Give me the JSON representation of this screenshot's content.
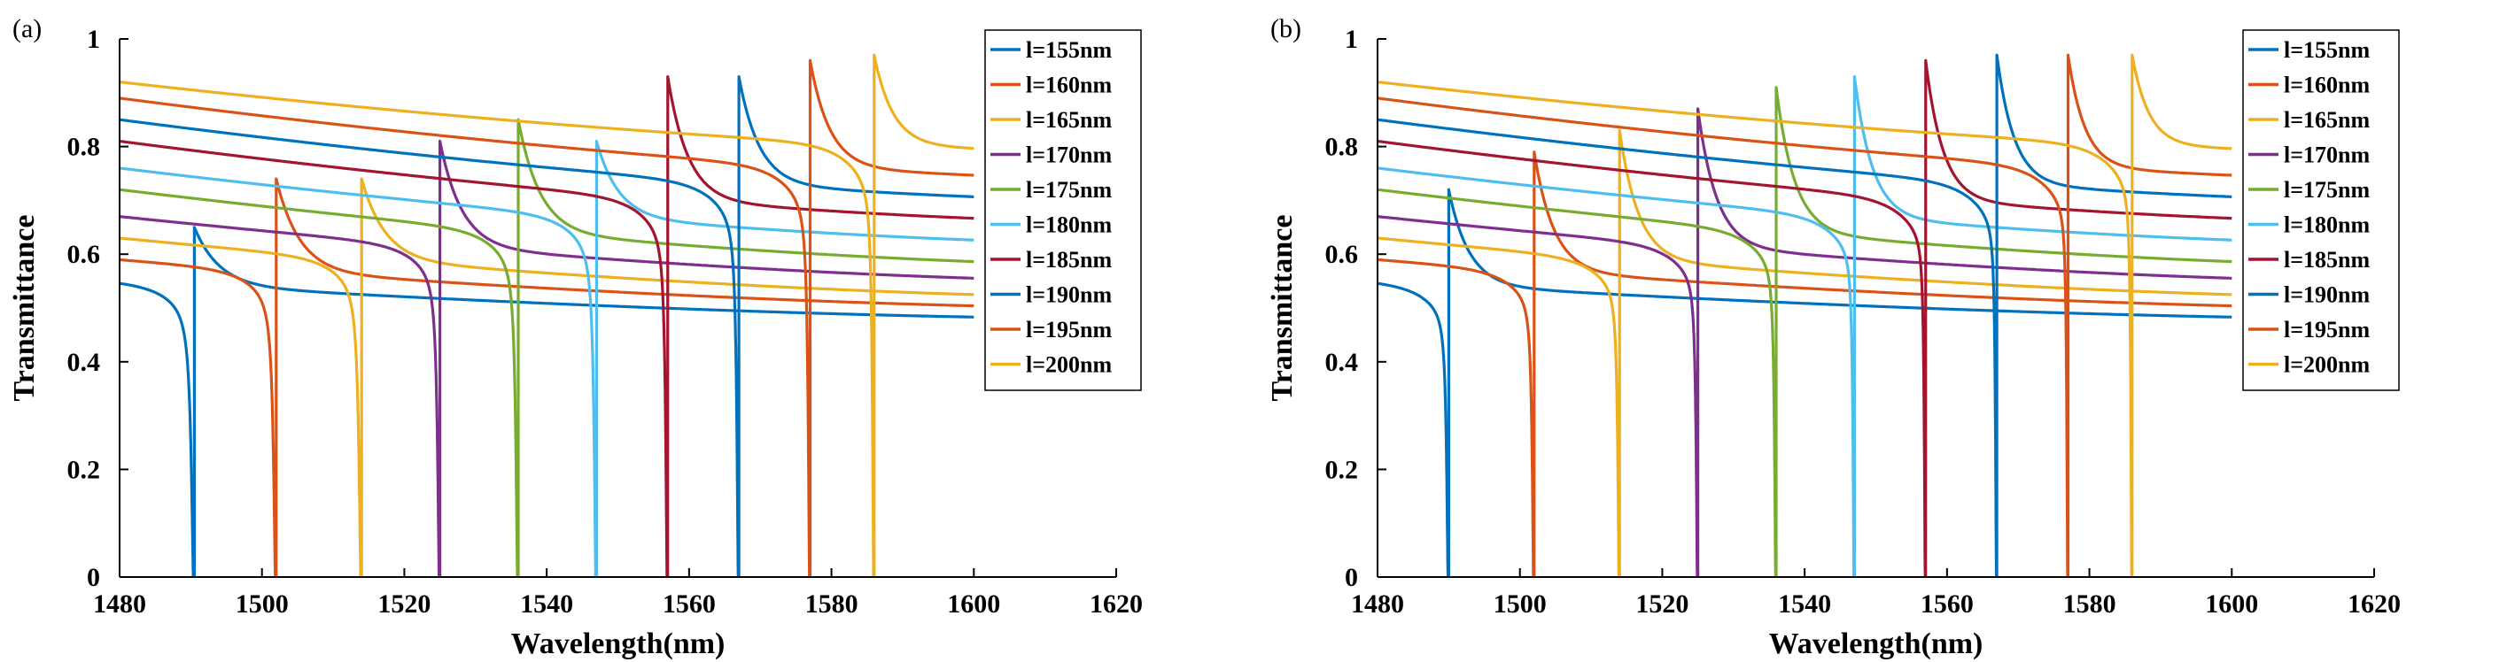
{
  "chart_data": [
    {
      "type": "line",
      "panel_label": "(a)",
      "xlabel": "Wavelength(nm)",
      "ylabel": "Transmittance",
      "xlim": [
        1480,
        1620
      ],
      "ylim": [
        0,
        1
      ],
      "xticks": [
        "1480",
        "1500",
        "1520",
        "1540",
        "1560",
        "1580",
        "1600",
        "1620"
      ],
      "yticks": [
        "0",
        "0.2",
        "0.4",
        "0.6",
        "0.8",
        "1"
      ],
      "legend_position": "top-right",
      "series": [
        {
          "name": "l=155nm",
          "color": "#0072BD",
          "base_start": 0.55,
          "base_end": 0.48,
          "resonance": 1490.5,
          "peak": 0.65,
          "dip": 0.01,
          "width": 0.45
        },
        {
          "name": "l=160nm",
          "color": "#D95319",
          "base_start": 0.59,
          "base_end": 0.5,
          "resonance": 1502.0,
          "peak": 0.74,
          "dip": 0.01,
          "width": 0.4
        },
        {
          "name": "l=165nm",
          "color": "#EDB120",
          "base_start": 0.63,
          "base_end": 0.52,
          "resonance": 1514.0,
          "peak": 0.74,
          "dip": 0.01,
          "width": 0.4
        },
        {
          "name": "l=170nm",
          "color": "#7E2F8E",
          "base_start": 0.67,
          "base_end": 0.55,
          "resonance": 1525.0,
          "peak": 0.81,
          "dip": 0.01,
          "width": 0.35
        },
        {
          "name": "l=175nm",
          "color": "#77AC30",
          "base_start": 0.72,
          "base_end": 0.58,
          "resonance": 1536.0,
          "peak": 0.85,
          "dip": 0.01,
          "width": 0.35
        },
        {
          "name": "l=180nm",
          "color": "#4DBEEE",
          "base_start": 0.76,
          "base_end": 0.62,
          "resonance": 1547.0,
          "peak": 0.81,
          "dip": 0.01,
          "width": 0.35
        },
        {
          "name": "l=185nm",
          "color": "#A2142F",
          "base_start": 0.81,
          "base_end": 0.66,
          "resonance": 1557.0,
          "peak": 0.93,
          "dip": 0.01,
          "width": 0.3
        },
        {
          "name": "l=190nm",
          "color": "#0072BD",
          "base_start": 0.85,
          "base_end": 0.7,
          "resonance": 1567.0,
          "peak": 0.93,
          "dip": 0.01,
          "width": 0.3
        },
        {
          "name": "l=195nm",
          "color": "#D95319",
          "base_start": 0.89,
          "base_end": 0.74,
          "resonance": 1577.0,
          "peak": 0.96,
          "dip": 0.01,
          "width": 0.28
        },
        {
          "name": "l=200nm",
          "color": "#EDB120",
          "base_start": 0.92,
          "base_end": 0.79,
          "resonance": 1586.0,
          "peak": 0.97,
          "dip": 0.01,
          "width": 0.25
        }
      ]
    },
    {
      "type": "line",
      "panel_label": "(b)",
      "xlabel": "Wavelength(nm)",
      "ylabel": "Transmittance",
      "xlim": [
        1480,
        1620
      ],
      "ylim": [
        0,
        1
      ],
      "xticks": [
        "1480",
        "1500",
        "1520",
        "1540",
        "1560",
        "1580",
        "1600",
        "1620"
      ],
      "yticks": [
        "0",
        "0.2",
        "0.4",
        "0.6",
        "0.8",
        "1"
      ],
      "legend_position": "top-right",
      "series": [
        {
          "name": "l=155nm",
          "color": "#0072BD",
          "base_start": 0.55,
          "base_end": 0.48,
          "resonance": 1490.0,
          "peak": 0.72,
          "dip": 0.0,
          "width": 0.3
        },
        {
          "name": "l=160nm",
          "color": "#D95319",
          "base_start": 0.59,
          "base_end": 0.5,
          "resonance": 1502.0,
          "peak": 0.79,
          "dip": 0.0,
          "width": 0.28
        },
        {
          "name": "l=165nm",
          "color": "#EDB120",
          "base_start": 0.63,
          "base_end": 0.52,
          "resonance": 1514.0,
          "peak": 0.83,
          "dip": 0.0,
          "width": 0.26
        },
        {
          "name": "l=170nm",
          "color": "#7E2F8E",
          "base_start": 0.67,
          "base_end": 0.55,
          "resonance": 1525.0,
          "peak": 0.87,
          "dip": 0.0,
          "width": 0.25
        },
        {
          "name": "l=175nm",
          "color": "#77AC30",
          "base_start": 0.72,
          "base_end": 0.58,
          "resonance": 1536.0,
          "peak": 0.91,
          "dip": 0.0,
          "width": 0.24
        },
        {
          "name": "l=180nm",
          "color": "#4DBEEE",
          "base_start": 0.76,
          "base_end": 0.62,
          "resonance": 1547.0,
          "peak": 0.93,
          "dip": 0.0,
          "width": 0.22
        },
        {
          "name": "l=185nm",
          "color": "#A2142F",
          "base_start": 0.81,
          "base_end": 0.66,
          "resonance": 1557.0,
          "peak": 0.96,
          "dip": 0.0,
          "width": 0.2
        },
        {
          "name": "l=190nm",
          "color": "#0072BD",
          "base_start": 0.85,
          "base_end": 0.7,
          "resonance": 1567.0,
          "peak": 0.97,
          "dip": 0.0,
          "width": 0.2
        },
        {
          "name": "l=195nm",
          "color": "#D95319",
          "base_start": 0.89,
          "base_end": 0.74,
          "resonance": 1577.0,
          "peak": 0.97,
          "dip": 0.0,
          "width": 0.18
        },
        {
          "name": "l=200nm",
          "color": "#EDB120",
          "base_start": 0.92,
          "base_end": 0.79,
          "resonance": 1586.0,
          "peak": 0.97,
          "dip": 0.0,
          "width": 0.18
        }
      ]
    }
  ]
}
